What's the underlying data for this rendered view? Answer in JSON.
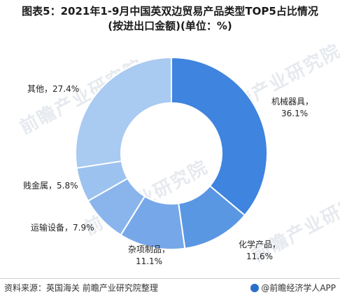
{
  "header": {
    "title_line1": "图表5：2021年1-9月中国英双边贸易产品类型TOP5占比情况",
    "title_line2": "(按进出口金额)(单位：%)"
  },
  "watermark": {
    "text": "前瞻产业研究院"
  },
  "footer": {
    "source": "资料来源：英国海关 前瞻产业研究院整理",
    "credit": "@前瞻经济学人APP"
  },
  "chart_data": {
    "type": "pie",
    "donut": true,
    "title": "图表5：2021年1-9月中国英双边贸易产品类型TOP5占比情况(按进出口金额)(单位：%)",
    "unit": "%",
    "categories": [
      "机械器具",
      "化学产品",
      "杂项制品",
      "运输设备",
      "贱金属",
      "其他"
    ],
    "values": [
      36.1,
      11.6,
      11.1,
      7.9,
      5.8,
      27.4
    ],
    "labels": [
      "机械器具，36.1%",
      "化学产品，11.6%",
      "杂项制品，11.1%",
      "运输设备，7.9%",
      "贱金属，5.8%",
      "其他，27.4%"
    ],
    "colors": [
      "#3f84de",
      "#5a97e3",
      "#76a8e9",
      "#89b5ec",
      "#9cc2ef",
      "#a9caf1"
    ],
    "legend": "none"
  }
}
